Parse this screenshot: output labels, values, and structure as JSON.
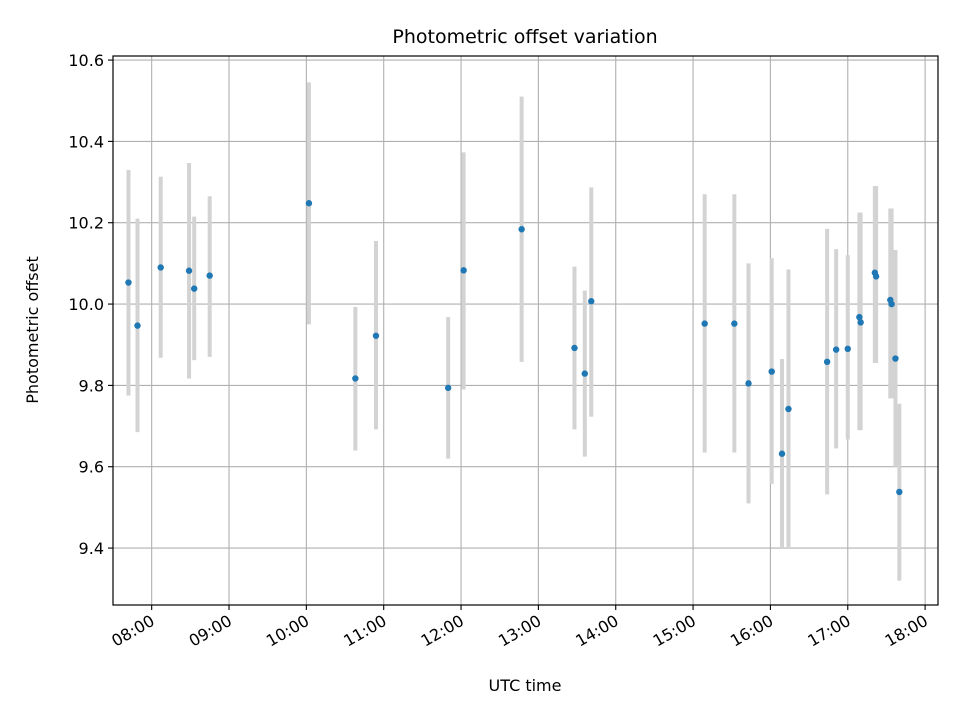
{
  "chart_data": {
    "type": "scatter",
    "title": "Photometric offset variation",
    "xlabel": "UTC time",
    "ylabel": "Photometric offset",
    "xlim": [
      "07:30",
      "18:10"
    ],
    "ylim": [
      9.26,
      10.61
    ],
    "grid": true,
    "x_ticks": [
      "08:00",
      "09:00",
      "10:00",
      "11:00",
      "12:00",
      "13:00",
      "14:00",
      "15:00",
      "16:00",
      "17:00",
      "18:00"
    ],
    "y_ticks": [
      "9.4",
      "9.6",
      "9.8",
      "10.0",
      "10.2",
      "10.4",
      "10.6"
    ],
    "point_color": "#1f77b4",
    "errorbar_color": "#d3d3d3",
    "points": [
      {
        "x": "07:42",
        "y": 10.053,
        "err_low": 9.775,
        "err_high": 10.33
      },
      {
        "x": "07:49",
        "y": 9.947,
        "err_low": 9.685,
        "err_high": 10.21
      },
      {
        "x": "08:07",
        "y": 10.09,
        "err_low": 9.868,
        "err_high": 10.313
      },
      {
        "x": "08:29",
        "y": 10.082,
        "err_low": 9.817,
        "err_high": 10.347
      },
      {
        "x": "08:33",
        "y": 10.038,
        "err_low": 9.862,
        "err_high": 10.215
      },
      {
        "x": "08:45",
        "y": 10.07,
        "err_low": 9.87,
        "err_high": 10.265
      },
      {
        "x": "10:02",
        "y": 10.248,
        "err_low": 9.95,
        "err_high": 10.545
      },
      {
        "x": "10:38",
        "y": 9.817,
        "err_low": 9.64,
        "err_high": 9.993
      },
      {
        "x": "10:54",
        "y": 9.922,
        "err_low": 9.692,
        "err_high": 10.155
      },
      {
        "x": "11:50",
        "y": 9.794,
        "err_low": 9.62,
        "err_high": 9.968
      },
      {
        "x": "12:02",
        "y": 10.083,
        "err_low": 9.79,
        "err_high": 10.373
      },
      {
        "x": "12:47",
        "y": 10.184,
        "err_low": 9.858,
        "err_high": 10.51
      },
      {
        "x": "13:28",
        "y": 9.892,
        "err_low": 9.692,
        "err_high": 10.092
      },
      {
        "x": "13:36",
        "y": 9.829,
        "err_low": 9.625,
        "err_high": 10.033
      },
      {
        "x": "13:41",
        "y": 10.007,
        "err_low": 9.723,
        "err_high": 10.287
      },
      {
        "x": "15:09",
        "y": 9.952,
        "err_low": 9.635,
        "err_high": 10.27
      },
      {
        "x": "15:32",
        "y": 9.952,
        "err_low": 9.635,
        "err_high": 10.27
      },
      {
        "x": "15:43",
        "y": 9.805,
        "err_low": 9.51,
        "err_high": 10.1
      },
      {
        "x": "16:01",
        "y": 9.834,
        "err_low": 9.558,
        "err_high": 10.113
      },
      {
        "x": "16:09",
        "y": 9.632,
        "err_low": 9.4,
        "err_high": 9.865
      },
      {
        "x": "16:14",
        "y": 9.742,
        "err_low": 9.4,
        "err_high": 10.085
      },
      {
        "x": "16:44",
        "y": 9.858,
        "err_low": 9.532,
        "err_high": 10.185
      },
      {
        "x": "16:51",
        "y": 9.888,
        "err_low": 9.645,
        "err_high": 10.135
      },
      {
        "x": "17:00",
        "y": 9.89,
        "err_low": 9.667,
        "err_high": 10.12
      },
      {
        "x": "17:09",
        "y": 9.968,
        "err_low": 9.69,
        "err_high": 10.225
      },
      {
        "x": "17:10",
        "y": 9.955,
        "err_low": 9.69,
        "err_high": 10.225
      },
      {
        "x": "17:21",
        "y": 10.077,
        "err_low": 9.855,
        "err_high": 10.29
      },
      {
        "x": "17:22",
        "y": 10.068,
        "err_low": 9.855,
        "err_high": 10.29
      },
      {
        "x": "17:33",
        "y": 10.01,
        "err_low": 9.768,
        "err_high": 10.235
      },
      {
        "x": "17:34",
        "y": 10.0,
        "err_low": 9.768,
        "err_high": 10.235
      },
      {
        "x": "17:37",
        "y": 9.866,
        "err_low": 9.6,
        "err_high": 10.133
      },
      {
        "x": "17:40",
        "y": 9.538,
        "err_low": 9.32,
        "err_high": 9.755
      }
    ]
  }
}
